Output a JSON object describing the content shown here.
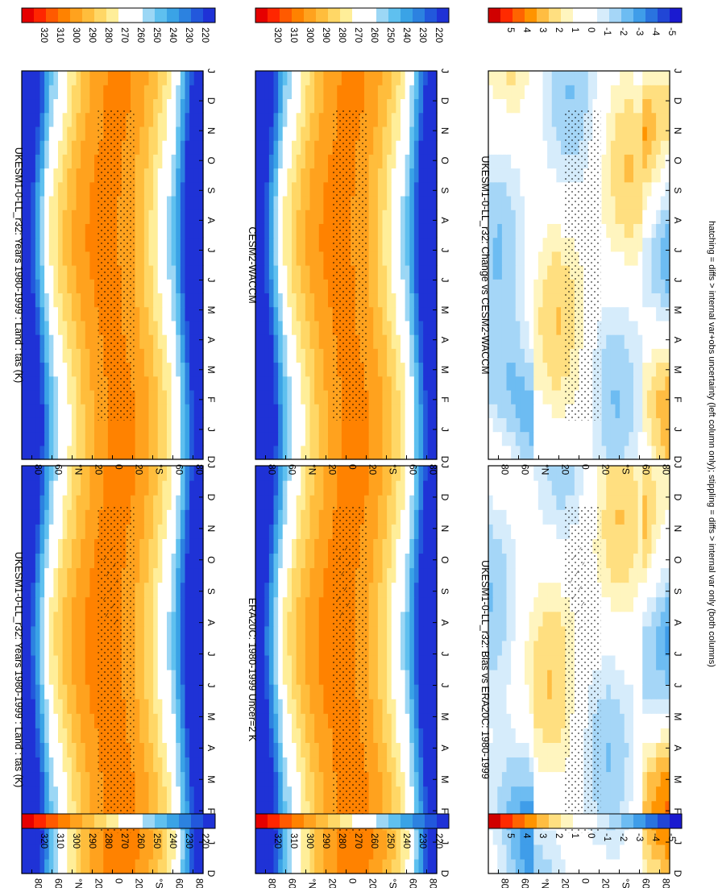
{
  "figure": {
    "footnote": "hatching = diffs > internal var+obs uncertainty (left column only); stippling = diffs > internal var only (both columns)",
    "palettes": {
      "abs": [
        "#e60000",
        "#ff2600",
        "#ff5a00",
        "#ff8200",
        "#ffa21e",
        "#ffbd3c",
        "#ffd766",
        "#ffee99",
        "#ffffff",
        "#ffffff",
        "#9cd7f5",
        "#5fc0ef",
        "#3aa3e6",
        "#2c82e0",
        "#2258dc",
        "#1f32d6"
      ],
      "diff": [
        "#d00000",
        "#ff2a00",
        "#ff6400",
        "#ff9400",
        "#ffbd42",
        "#ffdf80",
        "#fff5bf",
        "#ffffff",
        "#ffffff",
        "#d6ecfb",
        "#a5d6f7",
        "#6dbcf2",
        "#3f9de9",
        "#2a73df",
        "#2146d6",
        "#1a1ad0"
      ]
    },
    "month_ticks": [
      "D",
      "J",
      "F",
      "M",
      "A",
      "M",
      "J",
      "J",
      "A",
      "S",
      "O",
      "N",
      "D",
      "J"
    ],
    "lat_ticks": [
      "80",
      "60",
      "°N",
      "20",
      "0",
      "20",
      "°S",
      "60",
      "80"
    ]
  },
  "chart_data": [
    {
      "type": "heatmap",
      "title": "UKESM1-0-LL_r32: Years 1980-1999 : Land : tas (K)",
      "xlabel": "",
      "ylabel": "",
      "x": [
        "D",
        "J",
        "F",
        "M",
        "A",
        "M",
        "J",
        "J",
        "A",
        "S",
        "O",
        "N",
        "D",
        "J"
      ],
      "y": [
        "80",
        "60",
        "°N",
        "20",
        "0",
        "20",
        "°S",
        "60",
        "80"
      ],
      "zlim": [
        215,
        325
      ],
      "colorbar_ticks": [
        "320",
        "310",
        "300",
        "290",
        "280",
        "270",
        "260",
        "250",
        "240",
        "230",
        "220"
      ],
      "hatching": true
    },
    {
      "type": "heatmap",
      "title": "UKESM1-0-LL_r32: Years 1980-1999 : Land : tas (K)",
      "xlabel": "",
      "ylabel": "",
      "x": [
        "D",
        "J",
        "F",
        "M",
        "A",
        "M",
        "J",
        "J",
        "A",
        "S",
        "O",
        "N",
        "D",
        "J"
      ],
      "y": [
        "80",
        "60",
        "°N",
        "20",
        "0",
        "20",
        "°S",
        "60",
        "80"
      ],
      "zlim": [
        215,
        325
      ],
      "colorbar_ticks": [
        "320",
        "310",
        "300",
        "290",
        "280",
        "270",
        "260",
        "250",
        "240",
        "230",
        "220"
      ],
      "hatching": false
    },
    {
      "type": "heatmap",
      "title": "ERA20C: 1980-1999 Uncer=2 K",
      "xlabel": "",
      "ylabel": "",
      "x": [
        "D",
        "J",
        "F",
        "M",
        "A",
        "M",
        "J",
        "J",
        "A",
        "S",
        "O",
        "N",
        "D",
        "J"
      ],
      "y": [
        "80",
        "60",
        "°N",
        "20",
        "0",
        "20",
        "°S",
        "60",
        "80"
      ],
      "zlim": [
        215,
        325
      ],
      "colorbar_ticks": [
        "320",
        "310",
        "300",
        "290",
        "280",
        "270",
        "260",
        "250",
        "240",
        "230",
        "220"
      ],
      "hatching": true
    },
    {
      "type": "heatmap",
      "title": "CESM2-WACCM",
      "xlabel": "",
      "ylabel": "",
      "x": [
        "D",
        "J",
        "F",
        "M",
        "A",
        "M",
        "J",
        "J",
        "A",
        "S",
        "O",
        "N",
        "D",
        "J"
      ],
      "y": [
        "80",
        "60",
        "°N",
        "20",
        "0",
        "20",
        "°S",
        "60",
        "80"
      ],
      "zlim": [
        215,
        325
      ],
      "colorbar_ticks": [
        "320",
        "310",
        "300",
        "290",
        "280",
        "270",
        "260",
        "250",
        "240",
        "230",
        "220"
      ],
      "hatching": false
    },
    {
      "type": "heatmap",
      "title": "UKESM1-0-LL_r32: Bias vs ERA20C: 1980-1999",
      "xlabel": "",
      "ylabel": "",
      "x": [
        "D",
        "J",
        "F",
        "M",
        "A",
        "M",
        "J",
        "J",
        "A",
        "S",
        "O",
        "N",
        "D",
        "J"
      ],
      "y": [
        "80",
        "60",
        "°N",
        "20",
        "0",
        "20",
        "°S",
        "60",
        "80"
      ],
      "zlim": [
        -5.5,
        5.5
      ],
      "colorbar_ticks": [
        "5",
        "4",
        "3",
        "2",
        "1",
        "0",
        "-1",
        "-2",
        "-3",
        "-4",
        "-5"
      ],
      "hatching": true
    },
    {
      "type": "heatmap",
      "title": "UKESM1-0-LL_r32: Change vs CESM2-WACCM",
      "xlabel": "",
      "ylabel": "",
      "x": [
        "D",
        "J",
        "F",
        "M",
        "A",
        "M",
        "J",
        "J",
        "A",
        "S",
        "O",
        "N",
        "D",
        "J"
      ],
      "y": [
        "80",
        "60",
        "°N",
        "20",
        "0",
        "20",
        "°S",
        "60",
        "80"
      ],
      "zlim": [
        -5.5,
        5.5
      ],
      "colorbar_ticks": [
        "5",
        "4",
        "3",
        "2",
        "1",
        "0",
        "-1",
        "-2",
        "-3",
        "-4",
        "-5"
      ],
      "hatching": false
    }
  ]
}
